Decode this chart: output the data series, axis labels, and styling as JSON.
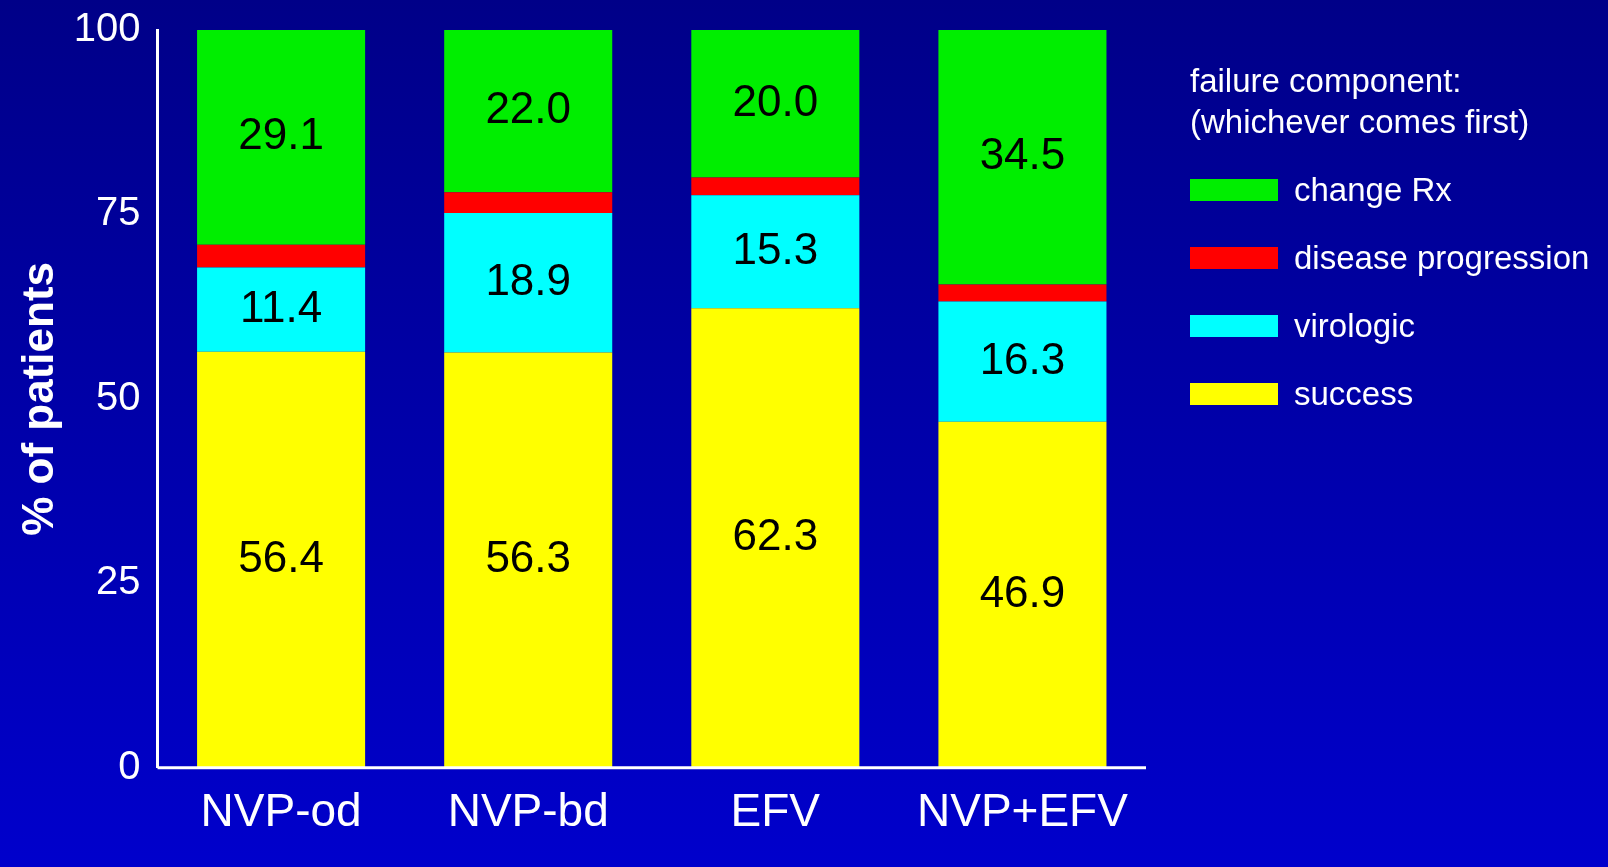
{
  "chart_data": {
    "type": "bar",
    "stacked": true,
    "ylabel": "% of patients",
    "legend_title": "failure component:\n(whichever comes first)",
    "legend": "right",
    "categories": [
      "NVP-od",
      "NVP-bd",
      "EFV",
      "NVP+EFV"
    ],
    "series": [
      {
        "name": "success",
        "color": "#ffff00",
        "values": [
          56.4,
          56.3,
          62.3,
          46.9
        ],
        "value_labels": [
          "56.4",
          "56.3",
          "62.3",
          "46.9"
        ]
      },
      {
        "name": "virologic",
        "color": "#00ffff",
        "values": [
          11.4,
          18.9,
          15.3,
          16.3
        ],
        "value_labels": [
          "11.4",
          "18.9",
          "15.3",
          "16.3"
        ]
      },
      {
        "name": "disease progression",
        "color": "#ff0000",
        "values": [
          3.1,
          2.8,
          2.4,
          2.3
        ],
        "value_labels": [
          null,
          null,
          null,
          null
        ]
      },
      {
        "name": "change Rx",
        "color": "#00ee00",
        "values": [
          29.1,
          22.0,
          20.0,
          34.5
        ],
        "value_labels": [
          "29.1",
          "22.0",
          "20.0",
          "34.5"
        ]
      }
    ],
    "ylim": [
      0,
      100
    ],
    "yticks": [
      0,
      25,
      50,
      75,
      100
    ],
    "grid": false
  }
}
